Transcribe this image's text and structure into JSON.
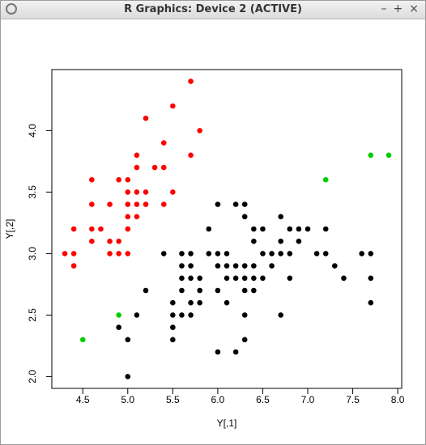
{
  "window": {
    "title": "R Graphics: Device 2 (ACTIVE)",
    "controls": [
      "–",
      "+",
      "×"
    ]
  },
  "chart_data": {
    "type": "scatter",
    "xlabel": "Y[,1]",
    "ylabel": "Y[,2]",
    "xlim": [
      4.156,
      8.044
    ],
    "ylim": [
      1.904,
      4.496
    ],
    "xticks": [
      4.5,
      {
        "value": 5,
        "label": "5.0"
      },
      5.5,
      {
        "value": 6,
        "label": "6.0"
      },
      6.5,
      {
        "value": 7,
        "label": "7.0"
      },
      7.5,
      {
        "value": 8,
        "label": "8.0"
      }
    ],
    "yticks": [
      {
        "value": 2,
        "label": "2.0"
      },
      2.5,
      {
        "value": 3,
        "label": "3.0"
      },
      3.5,
      {
        "value": 4,
        "label": "4.0"
      }
    ],
    "grid": false,
    "series": [
      {
        "color": "#000000",
        "x": [
          4.9,
          5.0,
          5.0,
          5.1,
          5.2,
          5.4,
          5.5,
          5.5,
          5.5,
          5.5,
          5.6,
          5.6,
          5.6,
          5.6,
          5.6,
          5.7,
          5.7,
          5.7,
          5.7,
          5.7,
          5.8,
          5.8,
          5.8,
          5.9,
          5.9,
          6.0,
          6.0,
          6.0,
          6.0,
          6.0,
          6.1,
          6.1,
          6.1,
          6.1,
          6.2,
          6.2,
          6.2,
          6.2,
          6.3,
          6.3,
          6.3,
          6.3,
          6.3,
          6.3,
          6.3,
          6.4,
          6.4,
          6.4,
          6.4,
          6.4,
          6.5,
          6.5,
          6.5,
          6.6,
          6.6,
          6.7,
          6.7,
          6.7,
          6.7,
          6.8,
          6.8,
          6.8,
          6.9,
          6.9,
          7.0,
          7.1,
          7.2,
          7.2,
          7.3,
          7.4,
          7.6,
          7.7,
          7.7,
          7.7
        ],
        "values": [
          2.4,
          2.0,
          2.3,
          2.5,
          2.7,
          3.0,
          2.3,
          2.4,
          2.5,
          2.6,
          2.5,
          2.7,
          2.8,
          2.9,
          3.0,
          2.5,
          2.6,
          2.8,
          2.9,
          3.0,
          2.6,
          2.7,
          2.8,
          3.0,
          3.2,
          2.2,
          2.7,
          2.9,
          3.0,
          3.4,
          2.6,
          2.8,
          2.9,
          3.0,
          2.2,
          2.8,
          2.9,
          3.4,
          2.3,
          2.5,
          2.7,
          2.8,
          2.9,
          3.3,
          3.4,
          2.7,
          2.8,
          2.9,
          3.1,
          3.2,
          2.8,
          3.0,
          3.2,
          2.9,
          3.0,
          2.5,
          3.0,
          3.1,
          3.3,
          2.8,
          3.0,
          3.2,
          3.1,
          3.2,
          3.2,
          3.0,
          3.0,
          3.2,
          2.9,
          2.8,
          3.0,
          2.6,
          2.8,
          3.0
        ]
      },
      {
        "color": "#ff0000",
        "x": [
          4.3,
          4.4,
          4.4,
          4.4,
          4.6,
          4.6,
          4.6,
          4.6,
          4.7,
          4.8,
          4.8,
          4.8,
          4.9,
          4.9,
          4.9,
          5.0,
          5.0,
          5.0,
          5.0,
          5.0,
          5.0,
          5.1,
          5.1,
          5.1,
          5.1,
          5.1,
          5.2,
          5.2,
          5.2,
          5.3,
          5.4,
          5.4,
          5.4,
          5.5,
          5.5,
          5.7,
          5.7,
          5.8
        ],
        "values": [
          3.0,
          2.9,
          3.0,
          3.2,
          3.1,
          3.2,
          3.4,
          3.6,
          3.2,
          3.0,
          3.1,
          3.4,
          3.0,
          3.1,
          3.6,
          3.0,
          3.2,
          3.3,
          3.4,
          3.5,
          3.6,
          3.3,
          3.4,
          3.5,
          3.7,
          3.8,
          3.4,
          3.5,
          4.1,
          3.7,
          3.4,
          3.7,
          3.9,
          3.5,
          4.2,
          3.8,
          4.4,
          4.0
        ]
      },
      {
        "color": "#00cd00",
        "x": [
          4.5,
          4.9,
          7.2,
          7.7,
          7.9
        ],
        "values": [
          2.3,
          2.5,
          3.6,
          3.8,
          3.8
        ]
      }
    ]
  }
}
